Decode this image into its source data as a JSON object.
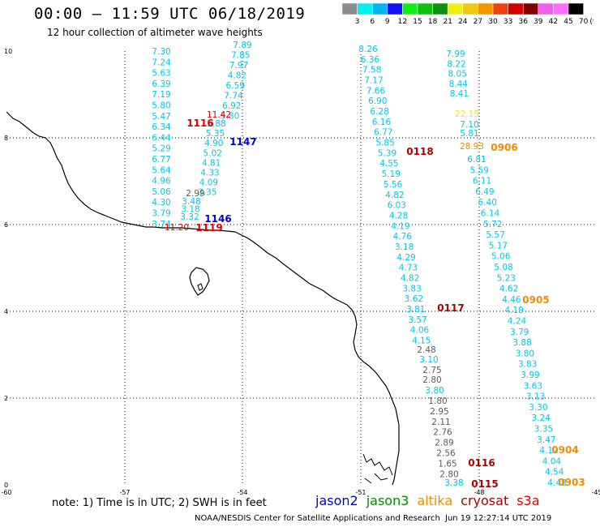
{
  "title": "00:00 – 11:59 UTC 06/18/2019",
  "subtitle": "12 hour collection of altimeter wave heights",
  "colorbar": {
    "labels": [
      "3",
      "6",
      "9",
      "12",
      "15",
      "18",
      "21",
      "24",
      "27",
      "30",
      "33",
      "36",
      "39",
      "42",
      "45",
      "70",
      "(ft)"
    ],
    "colors": [
      "#8c8c8c",
      "#00f0f0",
      "#00b4f0",
      "#1010f0",
      "#10f010",
      "#10c010",
      "#109010",
      "#f0f010",
      "#f0c810",
      "#f09600",
      "#f04010",
      "#d00000",
      "#800000",
      "#f060f0",
      "#ff6cff",
      "#000000"
    ]
  },
  "axes": {
    "x_ticks": [
      "-60",
      "-57",
      "-54",
      "-51",
      "-48",
      "-45"
    ],
    "y_ticks": [
      "0",
      "2",
      "4",
      "6",
      "8",
      "10"
    ]
  },
  "colors": {
    "swh_cyan": "#00c8e6",
    "swh_gray": "#5a5a5a",
    "swh_yellow": "#f0e61e",
    "jason2": "#0000cc",
    "jason3": "#008c00",
    "altika": "#f08c00",
    "cryosat": "#aa0000",
    "s3a": "#dc0000",
    "coast": "#000000",
    "grid": "#000000"
  },
  "tracks": [
    {
      "values": [
        "7.30",
        "7.24",
        "5.63",
        "6.39",
        "7.19",
        "5.80",
        "5.47",
        "6.34",
        "6.44",
        "5.29",
        "6.77",
        "5.64",
        "4.96",
        "5.06",
        "4.30",
        "3.79",
        "3.74"
      ],
      "color": "cyan"
    },
    {
      "values": [
        "7.89",
        "7.85",
        "7.97",
        "4.82",
        "6.59",
        "7.74",
        "6.92",
        "5.80"
      ],
      "color": "cyan"
    },
    {
      "values": [
        "11.42"
      ],
      "color": "red"
    },
    {
      "values": [
        "5.88",
        "5.35",
        "4.90",
        "5.02",
        "4.81",
        "4.33",
        "4.09",
        "3.35"
      ],
      "color": "cyan"
    },
    {
      "values": [
        "2.99"
      ],
      "color": "gray"
    },
    {
      "values": [
        "3.48",
        "3.18",
        "3.32"
      ],
      "color": "cyan"
    },
    {
      "values": [
        "11.20"
      ],
      "color": "red"
    },
    {
      "values": [
        "8.26",
        "6.36",
        "7.58",
        "7.17",
        "7.66",
        "6.90",
        "6.28",
        "6.16",
        "6.77",
        "5.85",
        "5.39",
        "4.55",
        "5.19",
        "5.56",
        "4.82",
        "6.03",
        "4.28",
        "4.19",
        "4.76",
        "3.18",
        "4.29",
        "4.73",
        "4.82",
        "3.83",
        "3.62",
        "3.81",
        "3.57",
        "4.06",
        "4.15"
      ],
      "color": "cyan"
    },
    {
      "values": [
        "2.48"
      ],
      "color": "gray"
    },
    {
      "values": [
        "3.10"
      ],
      "color": "cyan"
    },
    {
      "values": [
        "2.75",
        "2.80"
      ],
      "color": "gray"
    },
    {
      "values": [
        "3.80"
      ],
      "color": "cyan"
    },
    {
      "values": [
        "1.80",
        "2.95",
        "2.11",
        "2.76",
        "2.89",
        "2.56",
        "1.65",
        "2.80"
      ],
      "color": "gray"
    },
    {
      "values": [
        "3.38"
      ],
      "color": "cyan"
    },
    {
      "values": [
        "7.99",
        "8.22",
        "8.05",
        "8.44",
        "8.41"
      ],
      "color": "cyan"
    },
    {
      "values": [
        "22.15"
      ],
      "color": "yellow"
    },
    {
      "values": [
        "7.10",
        "5.81"
      ],
      "color": "cyan"
    },
    {
      "values": [
        "28.93"
      ],
      "color": "orange"
    },
    {
      "values": [
        "6.81",
        "5.59",
        "6.11",
        "6.49",
        "6.40",
        "6.14",
        "5.72",
        "5.57",
        "5.17",
        "5.06",
        "5.08",
        "5.23",
        "4.62",
        "4.46",
        "4.19",
        "4.24",
        "3.79",
        "3.88",
        "3.80",
        "3.83",
        "3.99",
        "3.63",
        "3.13",
        "3.30",
        "3.24",
        "3.35",
        "3.47",
        "4.12",
        "4.04",
        "4.54",
        "4.48"
      ],
      "color": "cyan"
    }
  ],
  "passes": [
    {
      "time": "1116",
      "sat": "s3a"
    },
    {
      "time": "1147",
      "sat": "jason2"
    },
    {
      "time": "1146",
      "sat": "jason2"
    },
    {
      "time": "1119",
      "sat": "s3a"
    },
    {
      "time": "0118",
      "sat": "cryosat"
    },
    {
      "time": "0906",
      "sat": "altika"
    },
    {
      "time": "0117",
      "sat": "cryosat"
    },
    {
      "time": "0905",
      "sat": "altika"
    },
    {
      "time": "0904",
      "sat": "altika"
    },
    {
      "time": "0116",
      "sat": "cryosat"
    },
    {
      "time": "0115",
      "sat": "cryosat"
    },
    {
      "time": "0903",
      "sat": "altika"
    }
  ],
  "note": "note: 1) Time is in UTC; 2) SWH is in feet",
  "legend": [
    {
      "label": "jason2",
      "sat": "jason2"
    },
    {
      "label": "jason3",
      "sat": "jason3"
    },
    {
      "label": "altika",
      "sat": "altika"
    },
    {
      "label": "cryosat",
      "sat": "cryosat"
    },
    {
      "label": "s3a",
      "sat": "s3a"
    }
  ],
  "credit": "NOAA/NESDIS Center for Satellite Applications and Research",
  "timestamp": "Jun 19 12:27:14 UTC 2019"
}
